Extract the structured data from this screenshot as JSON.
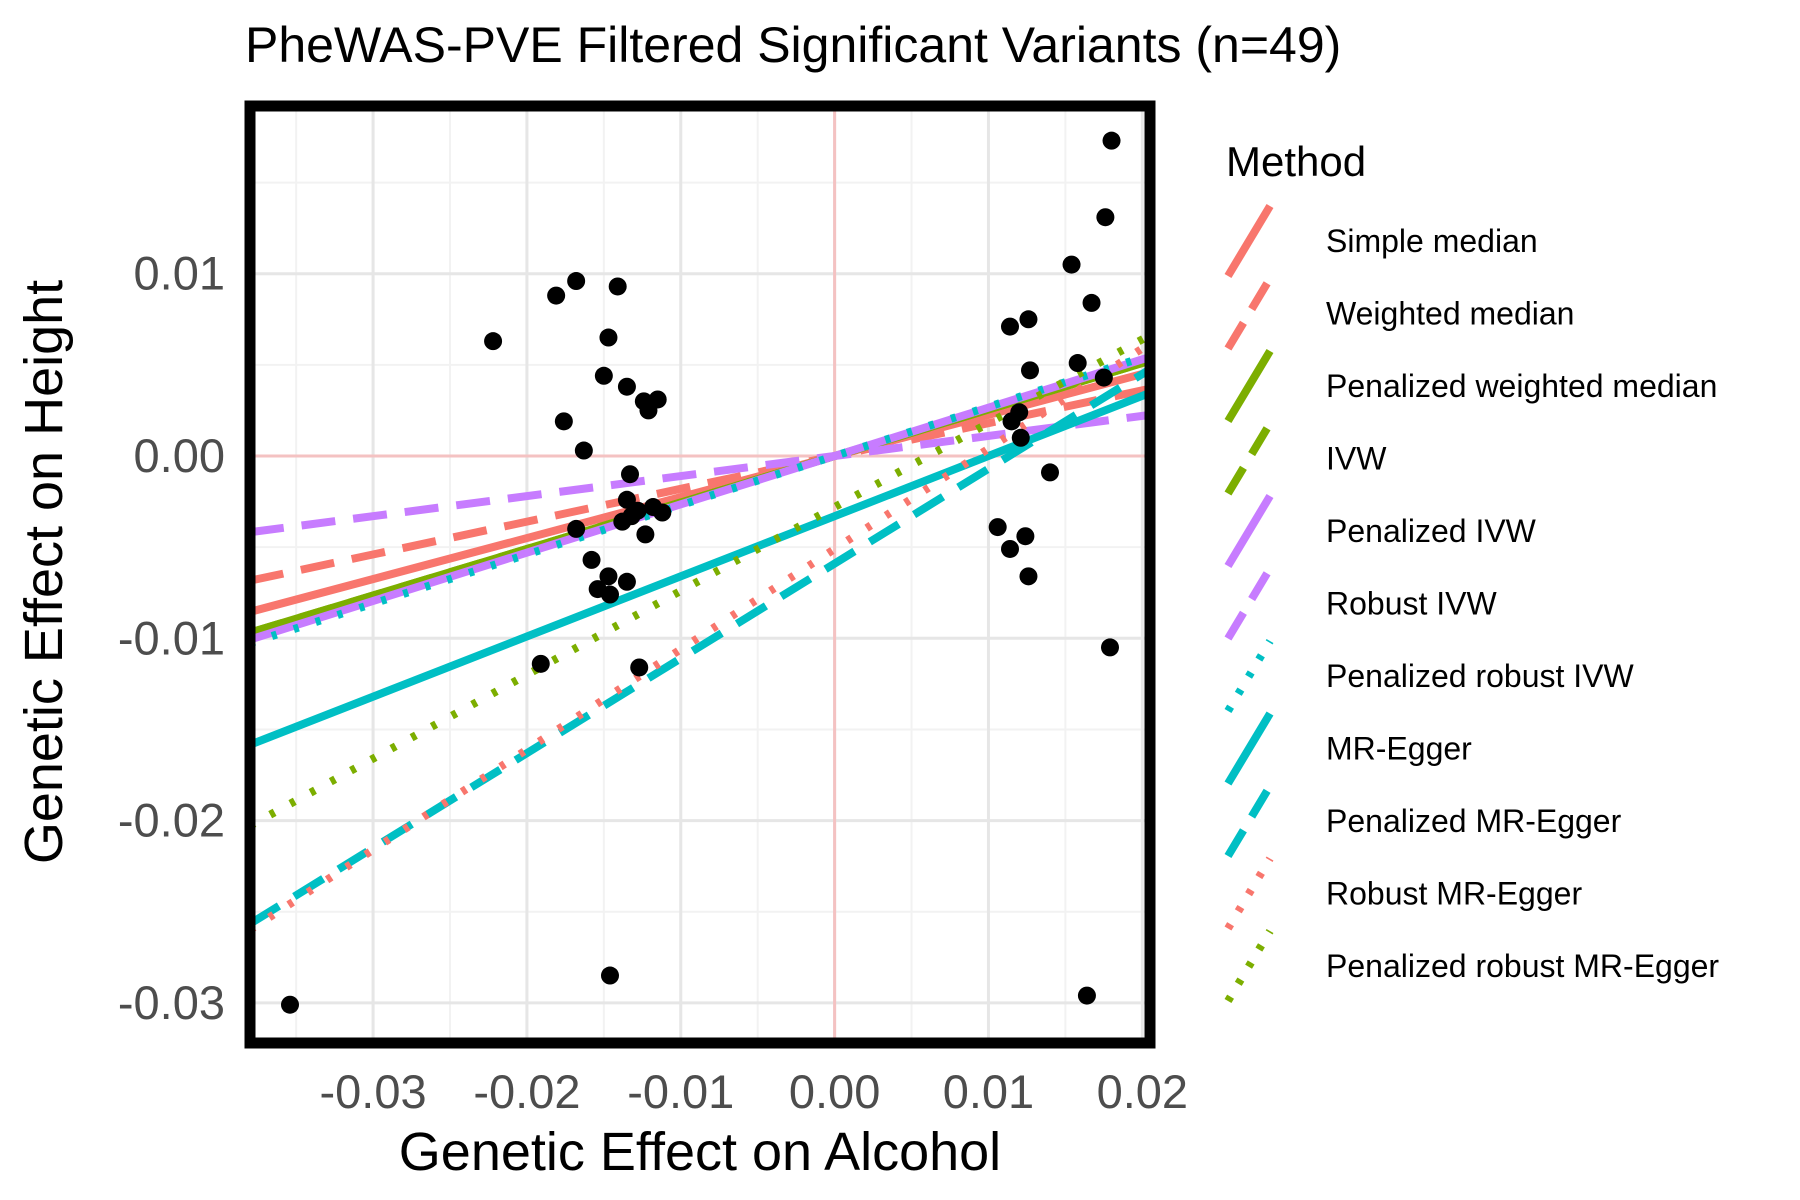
{
  "chart_data": {
    "type": "scatter",
    "title": "PheWAS-PVE Filtered Significant Variants (n=49)",
    "xlabel": "Genetic Effect on Alcohol",
    "ylabel": "Genetic Effect on Height",
    "xlim": [
      -0.038,
      0.0205
    ],
    "ylim": [
      -0.0322,
      0.0192
    ],
    "x_ticks": [
      -0.03,
      -0.02,
      -0.01,
      0.0,
      0.01,
      0.02
    ],
    "x_tick_labels": [
      "-0.03",
      "-0.02",
      "-0.01",
      "0.00",
      "0.01",
      "0.02"
    ],
    "y_ticks": [
      -0.03,
      -0.02,
      -0.01,
      0.0,
      0.01
    ],
    "y_tick_labels": [
      "-0.03",
      "-0.02",
      "-0.01",
      "0.00",
      "0.01"
    ],
    "grid": true,
    "reference_lines": {
      "x": 0,
      "y": 0,
      "color": "#f4c2c2"
    },
    "points": [
      {
        "x": -0.0354,
        "y": -0.0301
      },
      {
        "x": -0.0222,
        "y": 0.0063
      },
      {
        "x": -0.0181,
        "y": 0.0088
      },
      {
        "x": -0.0168,
        "y": 0.0096
      },
      {
        "x": -0.0176,
        "y": 0.0019
      },
      {
        "x": -0.0163,
        "y": 0.0003
      },
      {
        "x": -0.0191,
        "y": -0.0114
      },
      {
        "x": -0.0147,
        "y": 0.0065
      },
      {
        "x": -0.0141,
        "y": 0.0093
      },
      {
        "x": -0.015,
        "y": 0.0044
      },
      {
        "x": -0.0135,
        "y": 0.0038
      },
      {
        "x": -0.0124,
        "y": 0.003
      },
      {
        "x": -0.0115,
        "y": 0.0031
      },
      {
        "x": -0.0121,
        "y": 0.0025
      },
      {
        "x": -0.0133,
        "y": -0.001
      },
      {
        "x": -0.0135,
        "y": -0.0024
      },
      {
        "x": -0.0138,
        "y": -0.0036
      },
      {
        "x": -0.0132,
        "y": -0.0033
      },
      {
        "x": -0.0128,
        "y": -0.003
      },
      {
        "x": -0.0118,
        "y": -0.0028
      },
      {
        "x": -0.0112,
        "y": -0.0031
      },
      {
        "x": -0.0123,
        "y": -0.0043
      },
      {
        "x": -0.0168,
        "y": -0.004
      },
      {
        "x": -0.0158,
        "y": -0.0057
      },
      {
        "x": -0.0147,
        "y": -0.0066
      },
      {
        "x": -0.0154,
        "y": -0.0073
      },
      {
        "x": -0.0146,
        "y": -0.0076
      },
      {
        "x": -0.0135,
        "y": -0.0069
      },
      {
        "x": -0.0127,
        "y": -0.0116
      },
      {
        "x": -0.0146,
        "y": -0.0285
      },
      {
        "x": 0.0114,
        "y": 0.0071
      },
      {
        "x": 0.0126,
        "y": 0.0075
      },
      {
        "x": 0.0127,
        "y": 0.0047
      },
      {
        "x": 0.0115,
        "y": 0.0019
      },
      {
        "x": 0.0121,
        "y": 0.001
      },
      {
        "x": 0.014,
        "y": -0.0009
      },
      {
        "x": 0.0106,
        "y": -0.0039
      },
      {
        "x": 0.0114,
        "y": -0.0051
      },
      {
        "x": 0.0124,
        "y": -0.0044
      },
      {
        "x": 0.0126,
        "y": -0.0066
      },
      {
        "x": 0.0154,
        "y": 0.0105
      },
      {
        "x": 0.0158,
        "y": 0.0051
      },
      {
        "x": 0.0167,
        "y": 0.0084
      },
      {
        "x": 0.0176,
        "y": 0.0131
      },
      {
        "x": 0.018,
        "y": 0.0173
      },
      {
        "x": 0.0175,
        "y": 0.0043
      },
      {
        "x": 0.0179,
        "y": -0.0105
      },
      {
        "x": 0.0164,
        "y": -0.0296
      },
      {
        "x": 0.012,
        "y": 0.0024
      }
    ],
    "legend_title": "Method",
    "legend_position": "right",
    "series": [
      {
        "name": "Simple median",
        "color": "#f8766d",
        "dash": "solid",
        "slope": 0.225,
        "intercept": 0.0
      },
      {
        "name": "Weighted median",
        "color": "#f8766d",
        "dash": "dashed",
        "slope": 0.18,
        "intercept": 0.0
      },
      {
        "name": "Penalized weighted median",
        "color": "#7cae00",
        "dash": "solid",
        "slope": 0.255,
        "intercept": 0.0
      },
      {
        "name": "IVW",
        "color": "#7cae00",
        "dash": "dashed",
        "slope": 0.255,
        "intercept": 0.0
      },
      {
        "name": "Penalized IVW",
        "color": "#c77cff",
        "dash": "solid",
        "slope": 0.265,
        "intercept": 0.0
      },
      {
        "name": "Robust IVW",
        "color": "#c77cff",
        "dash": "dashed",
        "slope": 0.11,
        "intercept": 0.0
      },
      {
        "name": "Penalized robust IVW",
        "color": "#00bfc4",
        "dash": "dotted",
        "slope": 0.27,
        "intercept": 0.0
      },
      {
        "name": "MR-Egger",
        "color": "#00bfc4",
        "dash": "solid",
        "slope": 0.33,
        "intercept": -0.0033
      },
      {
        "name": "Penalized MR-Egger",
        "color": "#00bfc4",
        "dash": "dashed",
        "slope": 0.52,
        "intercept": -0.0059
      },
      {
        "name": "Robust MR-Egger",
        "color": "#f8766d",
        "dash": "dotted",
        "slope": 0.55,
        "intercept": -0.0051
      },
      {
        "name": "Penalized robust MR-Egger",
        "color": "#7cae00",
        "dash": "dotted",
        "slope": 0.46,
        "intercept": -0.0028
      }
    ]
  }
}
